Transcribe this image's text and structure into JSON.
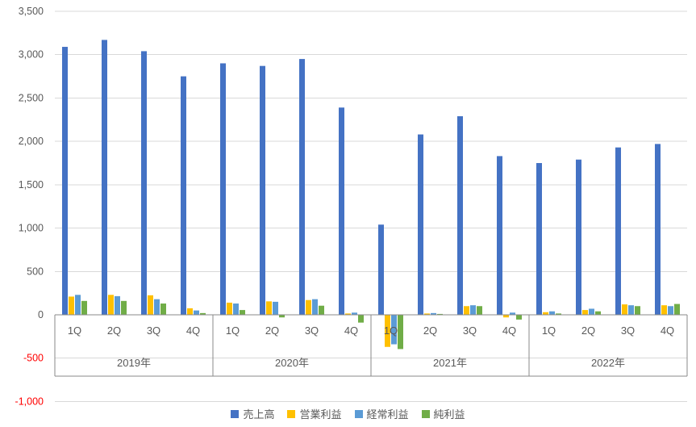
{
  "chart_data": {
    "type": "bar",
    "title": "",
    "years": [
      "2019年",
      "2020年",
      "2021年",
      "2022年"
    ],
    "categories": [
      "1Q",
      "2Q",
      "3Q",
      "4Q",
      "1Q",
      "2Q",
      "3Q",
      "4Q",
      "1Q",
      "2Q",
      "3Q",
      "4Q",
      "1Q",
      "2Q",
      "3Q",
      "4Q"
    ],
    "series": [
      {
        "name": "売上高",
        "color": "#4472C4",
        "values": [
          3090,
          3170,
          3040,
          2750,
          2900,
          2870,
          2950,
          2390,
          1040,
          2080,
          2290,
          1830,
          1750,
          1790,
          1930,
          1970
        ]
      },
      {
        "name": "営業利益",
        "color": "#FFC000",
        "values": [
          210,
          230,
          225,
          75,
          140,
          155,
          170,
          15,
          -370,
          15,
          100,
          -30,
          30,
          55,
          120,
          110
        ]
      },
      {
        "name": "経常利益",
        "color": "#5B9BD5",
        "values": [
          230,
          215,
          180,
          50,
          130,
          150,
          180,
          25,
          -340,
          20,
          110,
          25,
          40,
          70,
          110,
          100
        ]
      },
      {
        "name": "純利益",
        "color": "#70AD47",
        "values": [
          160,
          160,
          130,
          20,
          55,
          -30,
          105,
          -90,
          -395,
          10,
          100,
          -55,
          15,
          40,
          100,
          125
        ]
      }
    ],
    "y_axis": {
      "min": -1000,
      "max": 3500,
      "step": 500,
      "ticks": [
        {
          "value": -1000,
          "label": "-1,000"
        },
        {
          "value": -500,
          "label": "-500"
        },
        {
          "value": 0,
          "label": "0"
        },
        {
          "value": 500,
          "label": "500"
        },
        {
          "value": 1000,
          "label": "1,000"
        },
        {
          "value": 1500,
          "label": "1,500"
        },
        {
          "value": 2000,
          "label": "2,000"
        },
        {
          "value": 2500,
          "label": "2,500"
        },
        {
          "value": 3000,
          "label": "3,000"
        },
        {
          "value": 3500,
          "label": "3,500"
        }
      ]
    },
    "legend_position": "bottom",
    "grid": true,
    "gridline_color": "#D9D9D9",
    "axis_line_color": "#898989",
    "tick_label_color": "#595959",
    "negative_tick_color": "#FF0000"
  }
}
